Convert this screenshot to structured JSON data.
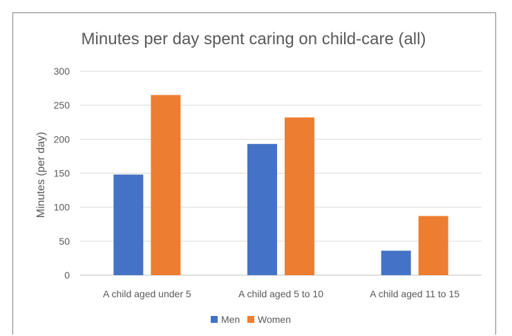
{
  "chart_data": {
    "type": "bar",
    "title": "Minutes per day spent caring on child-care (all)",
    "xlabel": "",
    "ylabel": "Minutes (per day)",
    "categories": [
      "A child aged under 5",
      "A child aged 5 to 10",
      "A child aged 11 to 15"
    ],
    "series": [
      {
        "name": "Men",
        "values": [
          148,
          193,
          36
        ],
        "color": "#4472C4"
      },
      {
        "name": "Women",
        "values": [
          265,
          232,
          87
        ],
        "color": "#ED7D31"
      }
    ],
    "ylim": [
      0,
      300
    ],
    "yticks": [
      0,
      50,
      100,
      150,
      200,
      250,
      300
    ],
    "grid": true,
    "legend": "bottom-center"
  }
}
